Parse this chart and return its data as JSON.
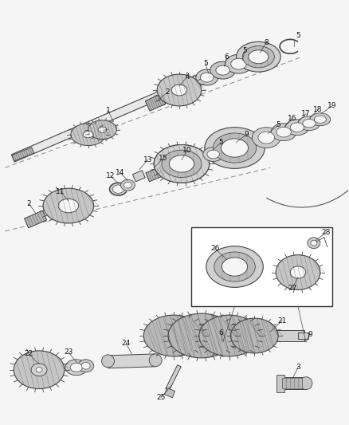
{
  "figsize": [
    4.38,
    5.33
  ],
  "dpi": 100,
  "bg_color": "#f5f5f5",
  "line_color": "#333333",
  "lw_main": 0.8,
  "lw_thin": 0.5,
  "label_fs": 6.5,
  "label_color": "#111111"
}
